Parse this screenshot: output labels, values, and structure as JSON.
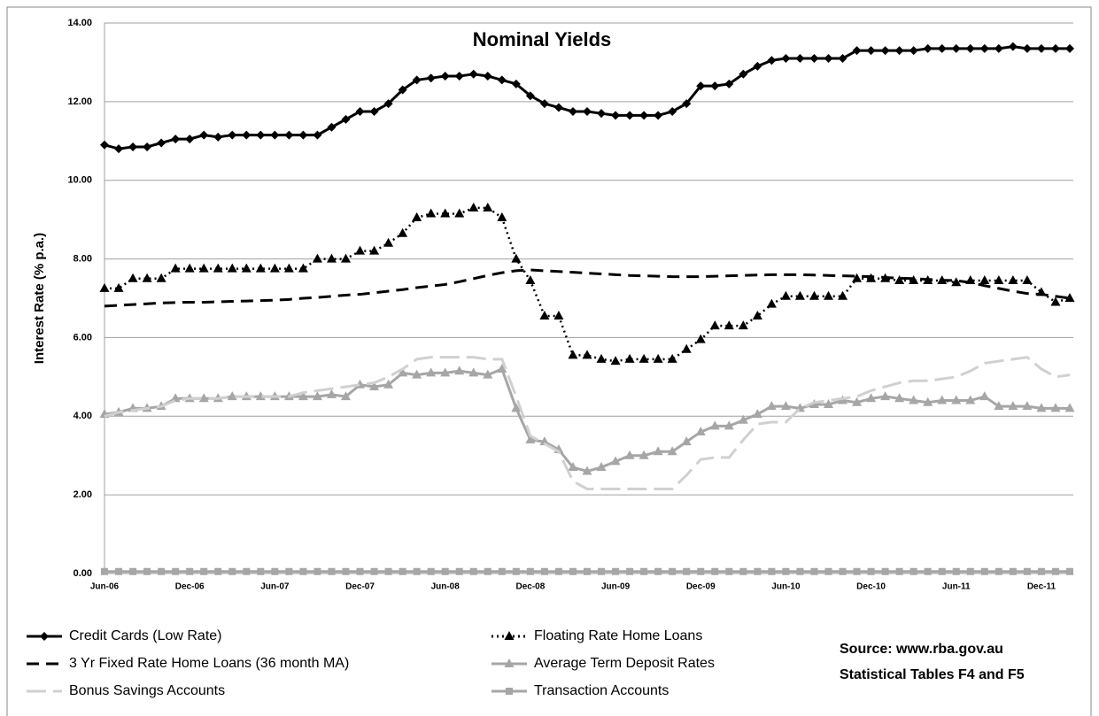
{
  "chart_data": {
    "type": "line",
    "title": "Nominal Yields",
    "y_label": "Interest Rate (% p.a.)",
    "annotations": [
      "Source: www.rba.gov.au",
      "Statistical Tables F4 and F5"
    ],
    "legend": "bottom",
    "grid": true,
    "ylim": [
      0,
      14
    ],
    "yticks": [
      {
        "value": 0,
        "label": "0.00"
      },
      {
        "value": 2,
        "label": "2.00"
      },
      {
        "value": 4,
        "label": "4.00"
      },
      {
        "value": 6,
        "label": "6.00"
      },
      {
        "value": 8,
        "label": "8.00"
      },
      {
        "value": 10,
        "label": "10.00"
      },
      {
        "value": 12,
        "label": "12.00"
      },
      {
        "value": 14,
        "label": "14.00"
      }
    ],
    "categories": [
      "Jun-06",
      null,
      null,
      null,
      null,
      null,
      "Dec-06",
      null,
      null,
      null,
      null,
      null,
      "Jun-07",
      null,
      null,
      null,
      null,
      null,
      "Dec-07",
      null,
      null,
      null,
      null,
      null,
      "Jun-08",
      null,
      null,
      null,
      null,
      null,
      "Dec-08",
      null,
      null,
      null,
      null,
      null,
      "Jun-09",
      null,
      null,
      null,
      null,
      null,
      "Dec-09",
      null,
      null,
      null,
      null,
      null,
      "Jun-10",
      null,
      null,
      null,
      null,
      null,
      "Dec-10",
      null,
      null,
      null,
      null,
      null,
      "Jun-11",
      null,
      null,
      null,
      null,
      null,
      "Dec-11",
      null,
      null
    ],
    "series": [
      {
        "name": "Credit Cards (Low Rate)",
        "color": "#000000",
        "marker": "diamond",
        "dash": "solid",
        "values": [
          10.9,
          10.8,
          10.85,
          10.85,
          10.95,
          11.05,
          11.05,
          11.15,
          11.1,
          11.15,
          11.15,
          11.15,
          11.15,
          11.15,
          11.15,
          11.15,
          11.35,
          11.55,
          11.75,
          11.75,
          11.95,
          12.3,
          12.55,
          12.6,
          12.65,
          12.65,
          12.7,
          12.65,
          12.55,
          12.45,
          12.15,
          11.95,
          11.85,
          11.75,
          11.75,
          11.7,
          11.65,
          11.65,
          11.65,
          11.65,
          11.75,
          11.95,
          12.4,
          12.4,
          12.45,
          12.7,
          12.9,
          13.05,
          13.1,
          13.1,
          13.1,
          13.1,
          13.1,
          13.3,
          13.3,
          13.3,
          13.3,
          13.3,
          13.35,
          13.35,
          13.35,
          13.35,
          13.35,
          13.35,
          13.4,
          13.35,
          13.35,
          13.35,
          13.35
        ]
      },
      {
        "name": "Floating Rate Home Loans",
        "color": "#000000",
        "marker": "triangle",
        "dash": "dotted",
        "values": [
          7.25,
          7.25,
          7.5,
          7.5,
          7.5,
          7.75,
          7.75,
          7.75,
          7.75,
          7.75,
          7.75,
          7.75,
          7.75,
          7.75,
          7.75,
          8.0,
          8.0,
          8.0,
          8.2,
          8.2,
          8.4,
          8.65,
          9.05,
          9.15,
          9.15,
          9.15,
          9.3,
          9.3,
          9.05,
          8.0,
          7.45,
          6.55,
          6.55,
          5.55,
          5.55,
          5.45,
          5.4,
          5.45,
          5.45,
          5.45,
          5.45,
          5.7,
          5.95,
          6.3,
          6.3,
          6.3,
          6.55,
          6.85,
          7.05,
          7.05,
          7.05,
          7.05,
          7.05,
          7.5,
          7.5,
          7.5,
          7.45,
          7.45,
          7.45,
          7.45,
          7.4,
          7.45,
          7.45,
          7.45,
          7.45,
          7.45,
          7.15,
          6.9,
          7.0
        ]
      },
      {
        "name": "3 Yr Fixed Rate Home Loans (36 month MA)",
        "color": "#000000",
        "marker": "none",
        "dash": "dashed",
        "values": [
          6.8,
          6.82,
          6.84,
          6.86,
          6.88,
          6.89,
          6.9,
          6.9,
          6.91,
          6.92,
          6.93,
          6.94,
          6.95,
          6.97,
          7.0,
          7.02,
          7.05,
          7.08,
          7.1,
          7.14,
          7.18,
          7.22,
          7.27,
          7.31,
          7.35,
          7.42,
          7.5,
          7.58,
          7.65,
          7.7,
          7.72,
          7.7,
          7.68,
          7.66,
          7.64,
          7.62,
          7.6,
          7.58,
          7.57,
          7.56,
          7.55,
          7.55,
          7.55,
          7.56,
          7.57,
          7.58,
          7.59,
          7.6,
          7.6,
          7.6,
          7.59,
          7.58,
          7.57,
          7.56,
          7.55,
          7.53,
          7.51,
          7.5,
          7.48,
          7.46,
          7.45,
          7.4,
          7.32,
          7.25,
          7.18,
          7.12,
          7.1,
          7.05,
          7.0
        ]
      },
      {
        "name": "Average Term Deposit Rates",
        "color": "#a6a6a6",
        "marker": "triangle",
        "dash": "solid",
        "values": [
          4.05,
          4.1,
          4.2,
          4.2,
          4.25,
          4.45,
          4.45,
          4.45,
          4.45,
          4.5,
          4.5,
          4.5,
          4.5,
          4.5,
          4.5,
          4.5,
          4.55,
          4.5,
          4.8,
          4.75,
          4.8,
          5.1,
          5.05,
          5.1,
          5.1,
          5.15,
          5.1,
          5.05,
          5.2,
          4.2,
          3.4,
          3.35,
          3.15,
          2.7,
          2.6,
          2.7,
          2.85,
          3.0,
          3.0,
          3.1,
          3.1,
          3.35,
          3.6,
          3.75,
          3.75,
          3.9,
          4.05,
          4.25,
          4.25,
          4.2,
          4.3,
          4.3,
          4.4,
          4.35,
          4.45,
          4.5,
          4.45,
          4.4,
          4.35,
          4.4,
          4.4,
          4.4,
          4.5,
          4.25,
          4.25,
          4.25,
          4.2,
          4.2,
          4.2
        ]
      },
      {
        "name": "Bonus Savings Accounts",
        "color": "#d0d0d0",
        "marker": "none",
        "dash": "longdash",
        "values": [
          4.0,
          4.1,
          4.15,
          4.2,
          4.25,
          4.4,
          4.45,
          4.45,
          4.45,
          4.5,
          4.5,
          4.5,
          4.5,
          4.5,
          4.6,
          4.65,
          4.7,
          4.75,
          4.8,
          4.85,
          5.0,
          5.2,
          5.45,
          5.5,
          5.5,
          5.5,
          5.5,
          5.45,
          5.45,
          4.5,
          3.5,
          3.3,
          3.1,
          2.35,
          2.15,
          2.15,
          2.15,
          2.15,
          2.15,
          2.15,
          2.15,
          2.5,
          2.9,
          2.95,
          2.95,
          3.4,
          3.8,
          3.85,
          3.85,
          4.2,
          4.35,
          4.4,
          4.45,
          4.5,
          4.65,
          4.75,
          4.85,
          4.9,
          4.9,
          4.95,
          5.0,
          5.15,
          5.35,
          5.4,
          5.45,
          5.5,
          5.2,
          5.0,
          5.05
        ]
      },
      {
        "name": "Transaction Accounts",
        "color": "#a6a6a6",
        "marker": "square",
        "dash": "solid",
        "values": [
          0.05,
          0.05,
          0.05,
          0.05,
          0.05,
          0.05,
          0.05,
          0.05,
          0.05,
          0.05,
          0.05,
          0.05,
          0.05,
          0.05,
          0.05,
          0.05,
          0.05,
          0.05,
          0.05,
          0.05,
          0.05,
          0.05,
          0.05,
          0.05,
          0.05,
          0.05,
          0.05,
          0.05,
          0.05,
          0.05,
          0.05,
          0.05,
          0.05,
          0.05,
          0.05,
          0.05,
          0.05,
          0.05,
          0.05,
          0.05,
          0.05,
          0.05,
          0.05,
          0.05,
          0.05,
          0.05,
          0.05,
          0.05,
          0.05,
          0.05,
          0.05,
          0.05,
          0.05,
          0.05,
          0.05,
          0.05,
          0.05,
          0.05,
          0.05,
          0.05,
          0.05,
          0.05,
          0.05,
          0.05,
          0.05,
          0.05,
          0.05,
          0.05,
          0.05
        ]
      }
    ]
  }
}
